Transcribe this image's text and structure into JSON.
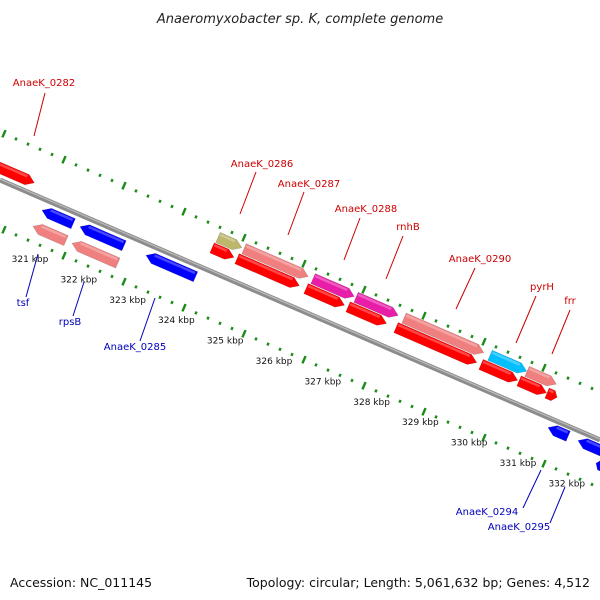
{
  "title": "Anaeromyxobacter sp. K, complete genome",
  "footer": {
    "accession": "Accession: NC_011145",
    "topology": "Topology: circular; Length: 5,061,632 bp; Genes: 4,512"
  },
  "colors": {
    "red": "#ff0000",
    "salmon": "#f08080",
    "blue": "#0000ff",
    "magenta": "#e81ea8",
    "olive": "#bdb76b",
    "cyan": "#00bfff",
    "backbone": "#8c8c8c",
    "dots": "#1a8c1a",
    "label_red": "#cc0000",
    "label_blue": "#0000bb"
  },
  "scale": {
    "ticks": [
      "321 kbp",
      "322 kbp",
      "323 kbp",
      "324 kbp",
      "325 kbp",
      "326 kbp",
      "327 kbp",
      "328 kbp",
      "329 kbp",
      "330 kbp",
      "331 kbp",
      "332 kbp"
    ]
  },
  "genes": [
    {
      "name": "AnaeK_0282",
      "strand": "forward",
      "color": "red"
    },
    {
      "name": "AnaeK_0286",
      "strand": "forward",
      "color": "olive"
    },
    {
      "name": "AnaeK_0287",
      "strand": "forward",
      "color": "salmon"
    },
    {
      "name": "AnaeK_0288",
      "strand": "forward",
      "color": "magenta"
    },
    {
      "name": "rnhB",
      "strand": "forward",
      "color": "magenta"
    },
    {
      "name": "AnaeK_0290",
      "strand": "forward",
      "color": "salmon"
    },
    {
      "name": "pyrH",
      "strand": "forward",
      "color": "cyan"
    },
    {
      "name": "frr",
      "strand": "forward",
      "color": "salmon"
    },
    {
      "name": "tsf",
      "strand": "reverse",
      "color": "salmon"
    },
    {
      "name": "rpsB",
      "strand": "reverse",
      "color": "salmon"
    },
    {
      "name": "AnaeK_0285",
      "strand": "reverse",
      "color": "blue"
    },
    {
      "name": "AnaeK_0294",
      "strand": "reverse",
      "color": "blue"
    },
    {
      "name": "AnaeK_0295",
      "strand": "reverse",
      "color": "blue"
    }
  ]
}
